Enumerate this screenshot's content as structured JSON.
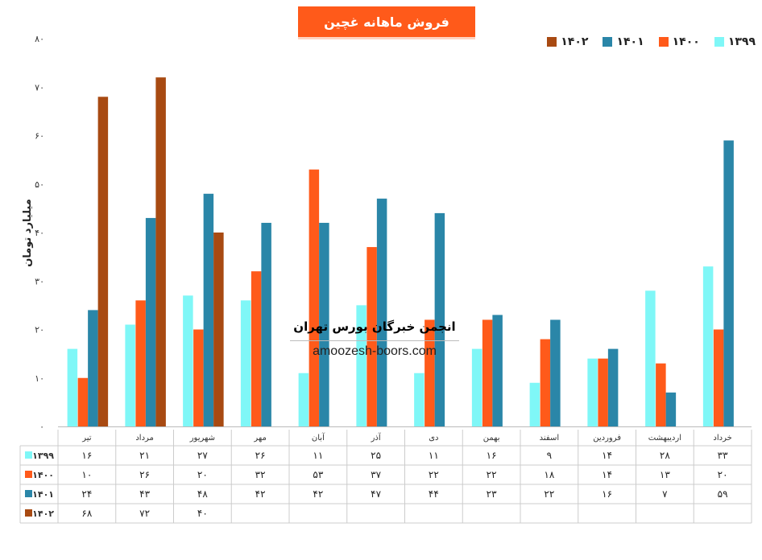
{
  "chart_data": {
    "type": "bar",
    "title": "فروش ماهانه غچین",
    "ylabel": "میلیارد تومان",
    "ylim": [
      0,
      80
    ],
    "yticks": [
      "۰",
      "۱۰",
      "۲۰",
      "۳۰",
      "۴۰",
      "۵۰",
      "۶۰",
      "۷۰",
      "۸۰"
    ],
    "categories": [
      "تیر",
      "مرداد",
      "شهریور",
      "مهر",
      "آبان",
      "آذر",
      "دی",
      "بهمن",
      "اسفند",
      "فروردین",
      "اردیبهشت",
      "خرداد"
    ],
    "series": [
      {
        "name": "۱۳۹۹",
        "color": "#7ff7f7",
        "values": [
          16,
          21,
          27,
          26,
          11,
          25,
          11,
          16,
          9,
          14,
          28,
          33
        ],
        "labels": [
          "۱۶",
          "۲۱",
          "۲۷",
          "۲۶",
          "۱۱",
          "۲۵",
          "۱۱",
          "۱۶",
          "۹",
          "۱۴",
          "۲۸",
          "۳۳"
        ]
      },
      {
        "name": "۱۴۰۰",
        "color": "#ff5a1a",
        "values": [
          10,
          26,
          20,
          32,
          53,
          37,
          22,
          22,
          18,
          14,
          13,
          20
        ],
        "labels": [
          "۱۰",
          "۲۶",
          "۲۰",
          "۳۲",
          "۵۳",
          "۳۷",
          "۲۲",
          "۲۲",
          "۱۸",
          "۱۴",
          "۱۳",
          "۲۰"
        ]
      },
      {
        "name": "۱۴۰۱",
        "color": "#2a86a8",
        "values": [
          24,
          43,
          48,
          42,
          42,
          47,
          44,
          23,
          22,
          16,
          7,
          59
        ],
        "labels": [
          "۲۴",
          "۴۳",
          "۴۸",
          "۴۲",
          "۴۲",
          "۴۷",
          "۴۴",
          "۲۳",
          "۲۲",
          "۱۶",
          "۷",
          "۵۹"
        ]
      },
      {
        "name": "۱۴۰۲",
        "color": "#a84a12",
        "values": [
          68,
          72,
          40,
          null,
          null,
          null,
          null,
          null,
          null,
          null,
          null,
          null
        ],
        "labels": [
          "۶۸",
          "۷۲",
          "۴۰",
          "",
          "",
          "",
          "",
          "",
          "",
          "",
          "",
          ""
        ]
      }
    ],
    "legend_position": "top-right",
    "grid": false,
    "data_table": true
  },
  "watermark": {
    "title": "انجمن خبرگان بورس تهران",
    "url": "amoozesh-boors.com"
  }
}
